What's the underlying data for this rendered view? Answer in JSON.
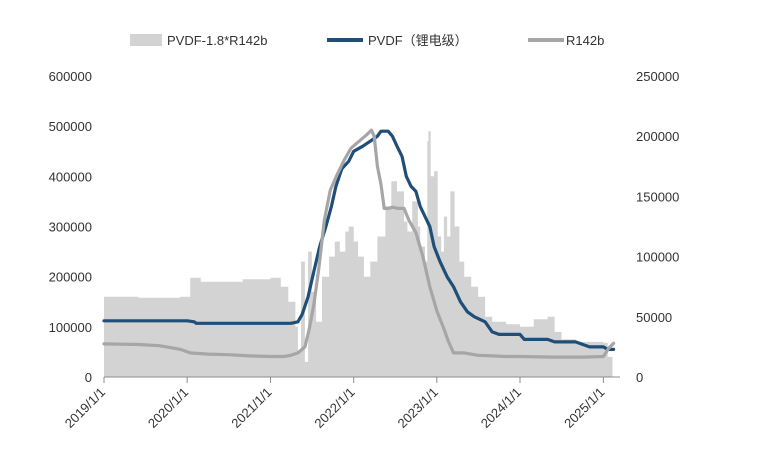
{
  "chart_data": {
    "type": "area+line",
    "title": "",
    "xlabel": "",
    "ylabel": "",
    "x_tick_labels": [
      "2019/1/1",
      "2020/1/1",
      "2021/1/1",
      "2022/1/1",
      "2023/1/1",
      "2024/1/1",
      "2025/1/1"
    ],
    "x_tick_dates": [
      "2019-01-01",
      "2020-01-01",
      "2021-01-01",
      "2022-01-01",
      "2023-01-01",
      "2024-01-01",
      "2025-01-01"
    ],
    "x_range": [
      "2019-01-01",
      "2025-03-15"
    ],
    "y_left": {
      "range": [
        0,
        600000
      ],
      "ticks": [
        0,
        100000,
        200000,
        300000,
        400000,
        500000,
        600000
      ],
      "tick_labels": [
        "0",
        "100000",
        "200000",
        "300000",
        "400000",
        "500000",
        "600000"
      ]
    },
    "y_right": {
      "range": [
        0,
        250000
      ],
      "ticks": [
        0,
        50000,
        100000,
        150000,
        200000,
        250000
      ],
      "tick_labels": [
        "0",
        "50000",
        "100000",
        "150000",
        "200000",
        "250000"
      ]
    },
    "grid": false,
    "legend_position": "top",
    "legend": [
      {
        "key": "spread",
        "label": "PVDF-1.8*R142b",
        "color": "#d3d3d3",
        "style": "area"
      },
      {
        "key": "pvdf",
        "label": "PVDF（锂电级）",
        "color": "#1f4e79",
        "style": "line"
      },
      {
        "key": "r142b",
        "label": "R142b",
        "color": "#a6a6a6",
        "style": "line"
      }
    ],
    "series": [
      {
        "key": "spread",
        "name": "PVDF-1.8*R142b",
        "axis": "left",
        "color": "#d3d3d3",
        "points": [
          [
            "2019-01-01",
            160000
          ],
          [
            "2019-06-01",
            158000
          ],
          [
            "2019-12-01",
            160000
          ],
          [
            "2020-01-15",
            198000
          ],
          [
            "2020-03-01",
            190000
          ],
          [
            "2020-06-01",
            190000
          ],
          [
            "2020-09-01",
            195000
          ],
          [
            "2021-01-01",
            198000
          ],
          [
            "2021-02-15",
            180000
          ],
          [
            "2021-03-20",
            150000
          ],
          [
            "2021-04-20",
            100000
          ],
          [
            "2021-05-01",
            50000
          ],
          [
            "2021-05-15",
            230000
          ],
          [
            "2021-06-01",
            30000
          ],
          [
            "2021-06-15",
            250000
          ],
          [
            "2021-07-01",
            170000
          ],
          [
            "2021-07-20",
            110000
          ],
          [
            "2021-08-15",
            200000
          ],
          [
            "2021-09-15",
            240000
          ],
          [
            "2021-10-10",
            270000
          ],
          [
            "2021-11-01",
            250000
          ],
          [
            "2021-11-25",
            290000
          ],
          [
            "2021-12-10",
            300000
          ],
          [
            "2022-01-01",
            270000
          ],
          [
            "2022-01-20",
            240000
          ],
          [
            "2022-02-15",
            200000
          ],
          [
            "2022-03-15",
            230000
          ],
          [
            "2022-04-15",
            280000
          ],
          [
            "2022-05-20",
            340000
          ],
          [
            "2022-06-15",
            390000
          ],
          [
            "2022-07-10",
            370000
          ],
          [
            "2022-08-10",
            310000
          ],
          [
            "2022-08-25",
            290000
          ],
          [
            "2022-09-15",
            350000
          ],
          [
            "2022-10-10",
            300000
          ],
          [
            "2022-10-20",
            260000
          ],
          [
            "2022-11-10",
            230000
          ],
          [
            "2022-11-20",
            470000
          ],
          [
            "2022-11-25",
            490000
          ],
          [
            "2022-12-05",
            400000
          ],
          [
            "2022-12-20",
            410000
          ],
          [
            "2023-01-05",
            280000
          ],
          [
            "2023-01-20",
            250000
          ],
          [
            "2023-02-01",
            320000
          ],
          [
            "2023-02-15",
            280000
          ],
          [
            "2023-03-01",
            370000
          ],
          [
            "2023-03-20",
            300000
          ],
          [
            "2023-04-10",
            230000
          ],
          [
            "2023-05-01",
            200000
          ],
          [
            "2023-06-01",
            180000
          ],
          [
            "2023-07-01",
            160000
          ],
          [
            "2023-08-01",
            120000
          ],
          [
            "2023-09-01",
            110000
          ],
          [
            "2023-11-01",
            105000
          ],
          [
            "2024-01-01",
            100000
          ],
          [
            "2024-03-01",
            115000
          ],
          [
            "2024-05-01",
            120000
          ],
          [
            "2024-06-01",
            90000
          ],
          [
            "2024-07-01",
            75000
          ],
          [
            "2024-09-01",
            70000
          ],
          [
            "2024-11-01",
            70000
          ],
          [
            "2025-01-01",
            68000
          ],
          [
            "2025-01-20",
            40000
          ],
          [
            "2025-02-10",
            0
          ]
        ]
      },
      {
        "key": "pvdf",
        "name": "PVDF（锂电级）",
        "axis": "left",
        "color": "#1f4e79",
        "points": [
          [
            "2019-01-01",
            112000
          ],
          [
            "2020-01-01",
            112000
          ],
          [
            "2020-02-01",
            110000
          ],
          [
            "2020-02-10",
            107000
          ],
          [
            "2021-01-01",
            107000
          ],
          [
            "2021-04-01",
            107000
          ],
          [
            "2021-05-01",
            110000
          ],
          [
            "2021-05-20",
            125000
          ],
          [
            "2021-06-15",
            160000
          ],
          [
            "2021-07-10",
            210000
          ],
          [
            "2021-08-05",
            260000
          ],
          [
            "2021-09-01",
            300000
          ],
          [
            "2021-09-25",
            340000
          ],
          [
            "2021-10-15",
            380000
          ],
          [
            "2021-11-10",
            415000
          ],
          [
            "2021-12-10",
            430000
          ],
          [
            "2022-01-01",
            450000
          ],
          [
            "2022-02-10",
            460000
          ],
          [
            "2022-03-15",
            470000
          ],
          [
            "2022-04-15",
            480000
          ],
          [
            "2022-05-01",
            490000
          ],
          [
            "2022-06-01",
            490000
          ],
          [
            "2022-06-20",
            480000
          ],
          [
            "2022-07-10",
            460000
          ],
          [
            "2022-08-01",
            440000
          ],
          [
            "2022-08-20",
            400000
          ],
          [
            "2022-09-10",
            380000
          ],
          [
            "2022-10-01",
            370000
          ],
          [
            "2022-10-20",
            340000
          ],
          [
            "2022-11-10",
            320000
          ],
          [
            "2022-12-01",
            300000
          ],
          [
            "2022-12-20",
            260000
          ],
          [
            "2023-01-15",
            230000
          ],
          [
            "2023-02-15",
            200000
          ],
          [
            "2023-03-15",
            180000
          ],
          [
            "2023-04-15",
            150000
          ],
          [
            "2023-05-15",
            130000
          ],
          [
            "2023-06-15",
            120000
          ],
          [
            "2023-08-01",
            110000
          ],
          [
            "2023-09-01",
            90000
          ],
          [
            "2023-10-01",
            85000
          ],
          [
            "2023-11-01",
            85000
          ],
          [
            "2024-01-01",
            85000
          ],
          [
            "2024-01-20",
            75000
          ],
          [
            "2024-03-01",
            75000
          ],
          [
            "2024-05-01",
            75000
          ],
          [
            "2024-06-01",
            70000
          ],
          [
            "2024-07-01",
            70000
          ],
          [
            "2024-09-01",
            70000
          ],
          [
            "2024-11-01",
            60000
          ],
          [
            "2025-01-01",
            60000
          ],
          [
            "2025-01-20",
            55000
          ],
          [
            "2025-02-15",
            55000
          ]
        ]
      },
      {
        "key": "r142b",
        "name": "R142b",
        "axis": "right",
        "color": "#a6a6a6",
        "points": [
          [
            "2019-01-01",
            27500
          ],
          [
            "2019-06-01",
            27000
          ],
          [
            "2019-09-01",
            26000
          ],
          [
            "2019-12-01",
            23000
          ],
          [
            "2020-01-15",
            20000
          ],
          [
            "2020-04-01",
            19000
          ],
          [
            "2020-07-01",
            18500
          ],
          [
            "2020-10-01",
            17500
          ],
          [
            "2021-01-01",
            17000
          ],
          [
            "2021-03-01",
            17000
          ],
          [
            "2021-04-01",
            18000
          ],
          [
            "2021-05-01",
            20000
          ],
          [
            "2021-06-01",
            25000
          ],
          [
            "2021-06-20",
            40000
          ],
          [
            "2021-07-10",
            60000
          ],
          [
            "2021-08-01",
            90000
          ],
          [
            "2021-08-25",
            130000
          ],
          [
            "2021-09-20",
            155000
          ],
          [
            "2021-10-20",
            168000
          ],
          [
            "2021-11-20",
            180000
          ],
          [
            "2021-12-20",
            190000
          ],
          [
            "2022-01-20",
            195000
          ],
          [
            "2022-02-20",
            200000
          ],
          [
            "2022-03-20",
            205000
          ],
          [
            "2022-04-01",
            200000
          ],
          [
            "2022-04-15",
            175000
          ],
          [
            "2022-05-01",
            160000
          ],
          [
            "2022-05-15",
            140000
          ],
          [
            "2022-06-01",
            140000
          ],
          [
            "2022-06-20",
            141000
          ],
          [
            "2022-07-15",
            140000
          ],
          [
            "2022-08-10",
            140000
          ],
          [
            "2022-09-01",
            130000
          ],
          [
            "2022-10-01",
            120000
          ],
          [
            "2022-11-01",
            100000
          ],
          [
            "2022-12-01",
            75000
          ],
          [
            "2023-01-01",
            55000
          ],
          [
            "2023-02-01",
            40000
          ],
          [
            "2023-02-20",
            30000
          ],
          [
            "2023-03-15",
            20000
          ],
          [
            "2023-05-01",
            20000
          ],
          [
            "2023-07-01",
            18000
          ],
          [
            "2023-09-01",
            17500
          ],
          [
            "2023-11-01",
            17000
          ],
          [
            "2024-01-01",
            17000
          ],
          [
            "2024-06-01",
            16500
          ],
          [
            "2024-10-01",
            16500
          ],
          [
            "2025-01-01",
            17000
          ],
          [
            "2025-01-25",
            24000
          ],
          [
            "2025-02-15",
            28000
          ]
        ]
      }
    ]
  }
}
